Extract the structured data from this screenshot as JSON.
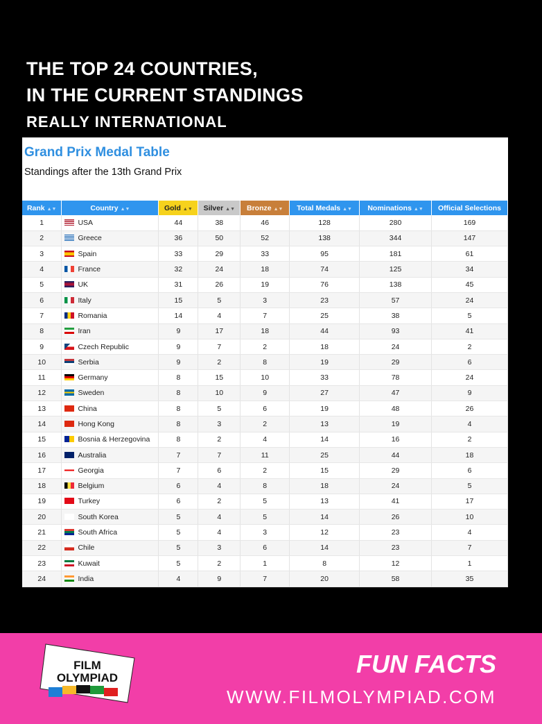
{
  "headline": {
    "line1": "THE TOP 24 COUNTRIES,",
    "line2": "IN THE CURRENT STANDINGS"
  },
  "panel": {
    "title": "Grand Prix Medal Table",
    "subtitle": "Standings after the 13th Grand Prix"
  },
  "columns": [
    "Rank",
    "Country",
    "Gold",
    "Silver",
    "Bronze",
    "Total Medals",
    "Nominations",
    "Official Selections"
  ],
  "header_colors": {
    "default": "#2f95ee",
    "gold": "#f6d21c",
    "silver": "#c9c9c9",
    "bronze": "#c87f3a"
  },
  "rows": [
    [
      "1",
      "USA",
      "44",
      "38",
      "46",
      "128",
      "280",
      "169"
    ],
    [
      "2",
      "Greece",
      "36",
      "50",
      "52",
      "138",
      "344",
      "147"
    ],
    [
      "3",
      "Spain",
      "33",
      "29",
      "33",
      "95",
      "181",
      "61"
    ],
    [
      "4",
      "France",
      "32",
      "24",
      "18",
      "74",
      "125",
      "34"
    ],
    [
      "5",
      "UK",
      "31",
      "26",
      "19",
      "76",
      "138",
      "45"
    ],
    [
      "6",
      "Italy",
      "15",
      "5",
      "3",
      "23",
      "57",
      "24"
    ],
    [
      "7",
      "Romania",
      "14",
      "4",
      "7",
      "25",
      "38",
      "5"
    ],
    [
      "8",
      "Iran",
      "9",
      "17",
      "18",
      "44",
      "93",
      "41"
    ],
    [
      "9",
      "Czech Republic",
      "9",
      "7",
      "2",
      "18",
      "24",
      "2"
    ],
    [
      "10",
      "Serbia",
      "9",
      "2",
      "8",
      "19",
      "29",
      "6"
    ],
    [
      "11",
      "Germany",
      "8",
      "15",
      "10",
      "33",
      "78",
      "24"
    ],
    [
      "12",
      "Sweden",
      "8",
      "10",
      "9",
      "27",
      "47",
      "9"
    ],
    [
      "13",
      "China",
      "8",
      "5",
      "6",
      "19",
      "48",
      "26"
    ],
    [
      "14",
      "Hong Kong",
      "8",
      "3",
      "2",
      "13",
      "19",
      "4"
    ],
    [
      "15",
      "Bosnia & Herzegovina",
      "8",
      "2",
      "4",
      "14",
      "16",
      "2"
    ],
    [
      "16",
      "Australia",
      "7",
      "7",
      "11",
      "25",
      "44",
      "18"
    ],
    [
      "17",
      "Georgia",
      "7",
      "6",
      "2",
      "15",
      "29",
      "6"
    ],
    [
      "18",
      "Belgium",
      "6",
      "4",
      "8",
      "18",
      "24",
      "5"
    ],
    [
      "19",
      "Turkey",
      "6",
      "2",
      "5",
      "13",
      "41",
      "17"
    ],
    [
      "20",
      "South Korea",
      "5",
      "4",
      "5",
      "14",
      "26",
      "10"
    ],
    [
      "21",
      "South Africa",
      "5",
      "4",
      "3",
      "12",
      "23",
      "4"
    ],
    [
      "22",
      "Chile",
      "5",
      "3",
      "6",
      "14",
      "23",
      "7"
    ],
    [
      "23",
      "Kuwait",
      "5",
      "2",
      "1",
      "8",
      "12",
      "1"
    ],
    [
      "24",
      "India",
      "4",
      "9",
      "7",
      "20",
      "58",
      "35"
    ]
  ],
  "overlay_text": "REALLY INTERNATIONAL",
  "footer": {
    "logo_line1": "FILM",
    "logo_line2": "OLYMPIAD",
    "label": "FUN FACTS",
    "url": "WWW.FILMOLYMPIAD.COM",
    "background": "#f23ea8"
  }
}
